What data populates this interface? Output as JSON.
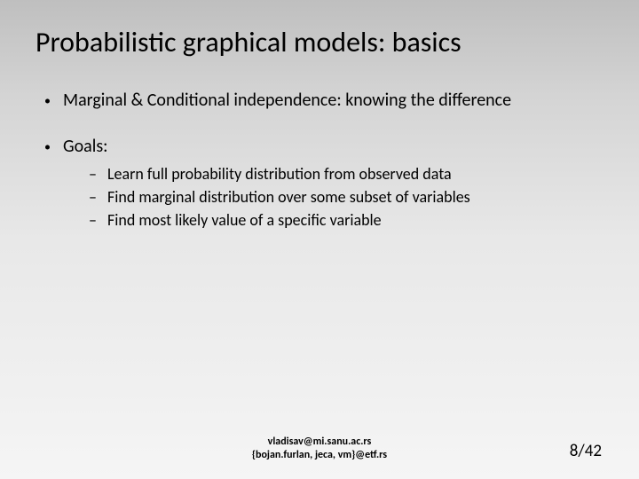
{
  "title": "Probabilistic graphical models: basics",
  "bullets": {
    "item1": "Marginal & Conditional independence: knowing the difference",
    "item2": "Goals:",
    "sub1": "Learn full probability distribution from observed data",
    "sub2": "Find marginal distribution over some subset of variables",
    "sub3": "Find most likely value of a specific variable"
  },
  "footer": {
    "line1": "vladisav@mi.sanu.ac.rs",
    "line2": "{bojan.furlan, jeca, vm}@etf.rs"
  },
  "page": "8/42",
  "colors": {
    "text": "#000000",
    "bg_top": "#bfbfbf",
    "bg_bottom": "#f5f5f5"
  },
  "fonts": {
    "title_size": 32,
    "l1_size": 20,
    "l2_size": 18,
    "footer_size": 12,
    "page_size": 19
  }
}
